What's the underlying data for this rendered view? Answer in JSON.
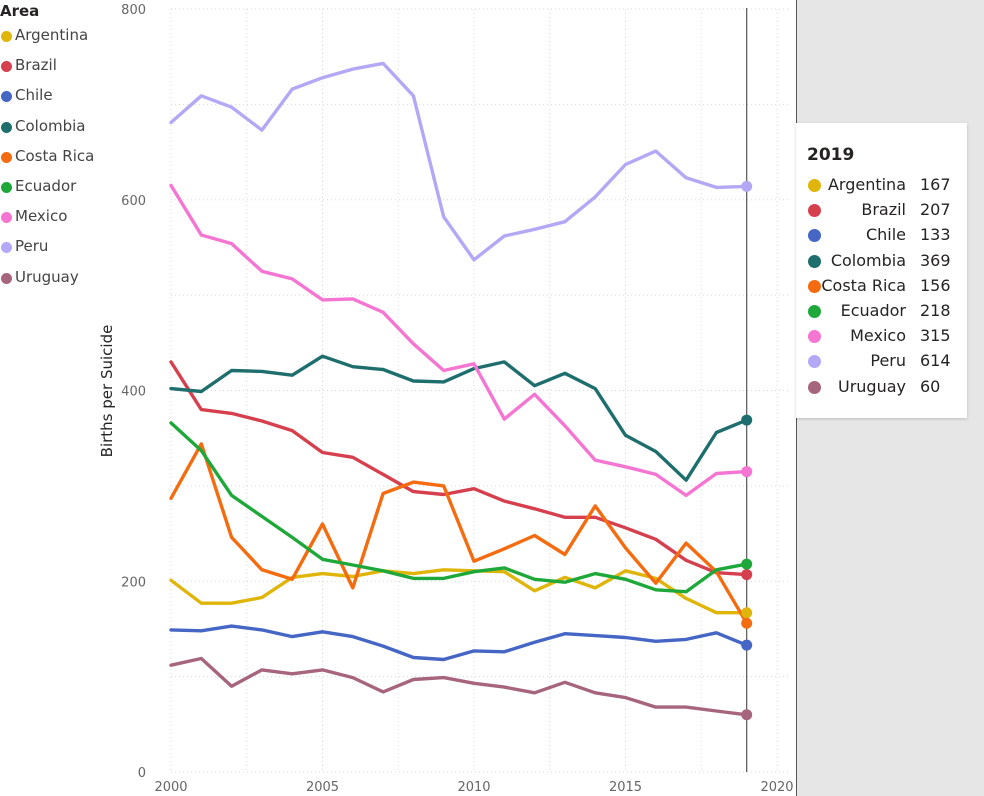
{
  "legend": {
    "title": "Area",
    "items": [
      {
        "label": "Argentina",
        "color": "#e0b50a"
      },
      {
        "label": "Brazil",
        "color": "#d6404e"
      },
      {
        "label": "Chile",
        "color": "#4566c4"
      },
      {
        "label": "Colombia",
        "color": "#1f6e6e"
      },
      {
        "label": "Costa Rica",
        "color": "#f56b0f"
      },
      {
        "label": "Ecuador",
        "color": "#1fa83a"
      },
      {
        "label": "Mexico",
        "color": "#f575d2"
      },
      {
        "label": "Peru",
        "color": "#b3a8f5"
      },
      {
        "label": "Uruguay",
        "color": "#a6657d"
      }
    ]
  },
  "tooltip": {
    "title": "2019",
    "rows": [
      {
        "name": "Argentina",
        "value": "167",
        "color": "#e0b50a"
      },
      {
        "name": "Brazil",
        "value": "207",
        "color": "#d6404e"
      },
      {
        "name": "Chile",
        "value": "133",
        "color": "#4566c4"
      },
      {
        "name": "Colombia",
        "value": "369",
        "color": "#1f6e6e"
      },
      {
        "name": "Costa Rica",
        "value": "156",
        "color": "#f56b0f"
      },
      {
        "name": "Ecuador",
        "value": "218",
        "color": "#1fa83a"
      },
      {
        "name": "Mexico",
        "value": "315",
        "color": "#f575d2"
      },
      {
        "name": "Peru",
        "value": "614",
        "color": "#b3a8f5"
      },
      {
        "name": "Uruguay",
        "value": "60",
        "color": "#a6657d"
      }
    ]
  },
  "chart_data": {
    "type": "line",
    "title": "",
    "xlabel": "",
    "ylabel": "Births per Suicide",
    "xlim": [
      2000,
      2020
    ],
    "ylim": [
      0,
      800
    ],
    "x_ticks": [
      2000,
      2005,
      2010,
      2015,
      2020
    ],
    "y_ticks": [
      0,
      200,
      400,
      600,
      800
    ],
    "grid": true,
    "legend_position": "top-left",
    "highlight_x": 2019,
    "x": [
      2000,
      2001,
      2002,
      2003,
      2004,
      2005,
      2006,
      2007,
      2008,
      2009,
      2010,
      2011,
      2012,
      2013,
      2014,
      2015,
      2016,
      2017,
      2018,
      2019
    ],
    "series": [
      {
        "name": "Argentina",
        "color": "#e0b50a",
        "values": [
          201,
          177,
          177,
          183,
          204,
          208,
          205,
          211,
          208,
          212,
          211,
          210,
          190,
          204,
          193,
          211,
          203,
          182,
          167,
          167
        ]
      },
      {
        "name": "Brazil",
        "color": "#d6404e",
        "values": [
          430,
          380,
          376,
          368,
          358,
          335,
          330,
          312,
          294,
          291,
          297,
          284,
          276,
          267,
          267,
          256,
          244,
          222,
          209,
          207
        ]
      },
      {
        "name": "Chile",
        "color": "#4566c4",
        "values": [
          149,
          148,
          153,
          149,
          142,
          147,
          142,
          132,
          120,
          118,
          127,
          126,
          136,
          145,
          143,
          141,
          137,
          139,
          146,
          133
        ]
      },
      {
        "name": "Colombia",
        "color": "#1f6e6e",
        "values": [
          402,
          399,
          421,
          420,
          416,
          436,
          425,
          422,
          410,
          409,
          423,
          430,
          405,
          418,
          402,
          353,
          336,
          306,
          356,
          369
        ]
      },
      {
        "name": "Costa Rica",
        "color": "#f56b0f",
        "values": [
          287,
          344,
          246,
          212,
          202,
          260,
          193,
          292,
          304,
          300,
          221,
          234,
          248,
          228,
          279,
          235,
          198,
          240,
          210,
          156
        ]
      },
      {
        "name": "Ecuador",
        "color": "#1fa83a",
        "values": [
          366,
          337,
          290,
          268,
          246,
          223,
          217,
          211,
          203,
          203,
          210,
          214,
          202,
          199,
          208,
          202,
          191,
          189,
          212,
          218
        ]
      },
      {
        "name": "Mexico",
        "color": "#f575d2",
        "values": [
          615,
          563,
          554,
          525,
          517,
          495,
          496,
          482,
          449,
          421,
          428,
          370,
          396,
          363,
          327,
          320,
          312,
          290,
          313,
          315
        ]
      },
      {
        "name": "Peru",
        "color": "#b3a8f5",
        "values": [
          681,
          709,
          697,
          673,
          716,
          728,
          737,
          743,
          709,
          582,
          537,
          562,
          569,
          577,
          603,
          637,
          651,
          623,
          613,
          614
        ]
      },
      {
        "name": "Uruguay",
        "color": "#a6657d",
        "values": [
          112,
          119,
          90,
          107,
          103,
          107,
          99,
          84,
          97,
          99,
          93,
          89,
          83,
          94,
          83,
          78,
          68,
          68,
          64,
          60
        ]
      }
    ]
  }
}
